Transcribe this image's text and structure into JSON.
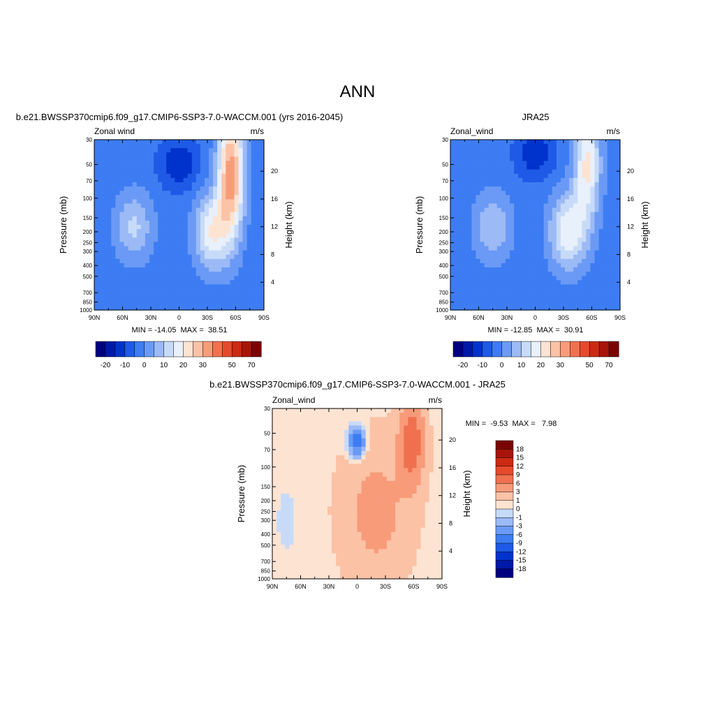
{
  "figure": {
    "title": "ANN",
    "colors": {
      "axis": "#000000",
      "background": "#ffffff"
    }
  },
  "chart_data": [
    {
      "type": "heatmap",
      "id": "panel-model",
      "title": "b.e21.BWSSP370cmip6.f09_g17.CMIP6-SSP3-7.0-WACCM.001 (yrs 2016-2045)",
      "left_label": "Zonal wind",
      "right_label": "m/s",
      "xlabel": "",
      "ylabel": "Pressure (mb)",
      "ylabel_right": "Height (km)",
      "x_ticks": [
        "90N",
        "60N",
        "30N",
        "0",
        "30S",
        "60S",
        "90S"
      ],
      "x_values": [
        90,
        60,
        30,
        0,
        -30,
        -60,
        -90
      ],
      "y_ticks": [
        "30",
        "50",
        "70",
        "100",
        "150",
        "200",
        "250",
        "300",
        "400",
        "500",
        "700",
        "850",
        "1000"
      ],
      "y_values": [
        30,
        50,
        70,
        100,
        150,
        200,
        250,
        300,
        400,
        500,
        700,
        850,
        1000
      ],
      "y_scale": "log",
      "height_ticks": [
        "4",
        "8",
        "12",
        "16",
        "20"
      ],
      "height_values": [
        4,
        8,
        12,
        16,
        20
      ],
      "stats": "MIN = -14.05  MAX =  38.51",
      "min": -14.05,
      "max": 38.51,
      "levels": [
        -25,
        -20,
        -15,
        -10,
        -5,
        0,
        5,
        10,
        15,
        20,
        25,
        30,
        35,
        40,
        50,
        60,
        70
      ],
      "colorbar_labels": [
        "-20",
        "-10",
        "0",
        "10",
        "20",
        "30",
        "50",
        "70"
      ],
      "colorbar_label_values": [
        -20,
        -10,
        0,
        10,
        20,
        30,
        50,
        70
      ],
      "features": [
        {
          "lat": 0,
          "p": 50,
          "value": -12,
          "sx": 14,
          "sp": 0.35
        },
        {
          "lat": 48,
          "p": 180,
          "value": 14,
          "sx": 14,
          "sp": 0.5
        },
        {
          "lat": -55,
          "p": 60,
          "value": 36,
          "sx": 10,
          "sp": 0.9
        },
        {
          "lat": -35,
          "p": 200,
          "value": 22,
          "sx": 13,
          "sp": 0.55
        }
      ],
      "background_value": -3
    },
    {
      "type": "heatmap",
      "id": "panel-obs",
      "title": "JRA25",
      "left_label": "Zonal_wind",
      "right_label": "m/s",
      "xlabel": "",
      "ylabel": "Pressure (mb)",
      "ylabel_right": "Height (km)",
      "x_ticks": [
        "90N",
        "60N",
        "30N",
        "0",
        "30S",
        "60S",
        "90S"
      ],
      "x_values": [
        90,
        60,
        30,
        0,
        -30,
        -60,
        -90
      ],
      "y_ticks": [
        "30",
        "50",
        "70",
        "100",
        "150",
        "200",
        "250",
        "300",
        "400",
        "500",
        "700",
        "850",
        "1000"
      ],
      "y_values": [
        30,
        50,
        70,
        100,
        150,
        200,
        250,
        300,
        400,
        500,
        700,
        850,
        1000
      ],
      "y_scale": "log",
      "height_ticks": [
        "4",
        "8",
        "12",
        "16",
        "20"
      ],
      "height_values": [
        4,
        8,
        12,
        16,
        20
      ],
      "stats": "MIN = -12.85  MAX =  30.91",
      "min": -12.85,
      "max": 30.91,
      "levels": [
        -25,
        -20,
        -15,
        -10,
        -5,
        0,
        5,
        10,
        15,
        20,
        25,
        30,
        35,
        40,
        50,
        60,
        70
      ],
      "colorbar_labels": [
        "-20",
        "-10",
        "0",
        "10",
        "20",
        "30",
        "50",
        "70"
      ],
      "colorbar_label_values": [
        -20,
        -10,
        0,
        10,
        20,
        30,
        50,
        70
      ],
      "features": [
        {
          "lat": 0,
          "p": 40,
          "value": -11,
          "sx": 14,
          "sp": 0.35
        },
        {
          "lat": 45,
          "p": 180,
          "value": 13,
          "sx": 14,
          "sp": 0.5
        },
        {
          "lat": -55,
          "p": 50,
          "value": 24,
          "sx": 10,
          "sp": 0.8
        },
        {
          "lat": -35,
          "p": 200,
          "value": 22,
          "sx": 14,
          "sp": 0.55
        }
      ],
      "background_value": -3
    },
    {
      "type": "heatmap",
      "id": "panel-diff",
      "title": "b.e21.BWSSP370cmip6.f09_g17.CMIP6-SSP3-7.0-WACCM.001 - JRA25",
      "left_label": "Zonal_wind",
      "right_label": "m/s",
      "xlabel": "",
      "ylabel": "Pressure (mb)",
      "ylabel_right": "Height (km)",
      "x_ticks": [
        "90N",
        "60N",
        "30N",
        "0",
        "30S",
        "60S",
        "90S"
      ],
      "x_values": [
        90,
        60,
        30,
        0,
        -30,
        -60,
        -90
      ],
      "y_ticks": [
        "30",
        "50",
        "70",
        "100",
        "150",
        "200",
        "250",
        "300",
        "400",
        "500",
        "700",
        "850",
        "1000"
      ],
      "y_values": [
        30,
        50,
        70,
        100,
        150,
        200,
        250,
        300,
        400,
        500,
        700,
        850,
        1000
      ],
      "y_scale": "log",
      "height_ticks": [
        "4",
        "8",
        "12",
        "16",
        "20"
      ],
      "height_values": [
        4,
        8,
        12,
        16,
        20
      ],
      "stats": "MIN =  -9.53  MAX =   7.98",
      "min": -9.53,
      "max": 7.98,
      "levels": [
        -21,
        -18,
        -15,
        -12,
        -9,
        -6,
        -3,
        -1,
        0,
        1,
        3,
        6,
        9,
        12,
        15,
        18,
        21
      ],
      "colorbar_labels": [
        "18",
        "15",
        "12",
        "9",
        "6",
        "3",
        "1",
        "0",
        "-1",
        "-3",
        "-6",
        "-9",
        "-12",
        "-15",
        "-18"
      ],
      "colorbar_label_values": [
        18,
        15,
        12,
        9,
        6,
        3,
        1,
        0,
        -1,
        -3,
        -6,
        -9,
        -12,
        -15,
        -18
      ],
      "features": [
        {
          "lat": 0,
          "p": 60,
          "value": -9.5,
          "sx": 6,
          "sp": 0.22
        },
        {
          "lat": -58,
          "p": 60,
          "value": 8,
          "sx": 9,
          "sp": 0.6
        },
        {
          "lat": -20,
          "p": 250,
          "value": 3.5,
          "sx": 25,
          "sp": 1.0
        },
        {
          "lat": 75,
          "p": 300,
          "value": -1.5,
          "sx": 6,
          "sp": 0.4
        }
      ],
      "background_value": 0.5
    }
  ],
  "colormaps": {
    "full": [
      "#000080",
      "#0019a8",
      "#0033cc",
      "#1e5ae6",
      "#3d7cf2",
      "#6a9af5",
      "#9bbaf6",
      "#c7dbf9",
      "#e8f0fb",
      "#fde3d2",
      "#fbc2a6",
      "#f89b79",
      "#f0714f",
      "#e64a2c",
      "#cc2a12",
      "#a8140a",
      "#7a0505"
    ],
    "diff": [
      "#000080",
      "#0019a8",
      "#0033cc",
      "#1e5ae6",
      "#3d7cf2",
      "#6a9af5",
      "#9bbaf6",
      "#c7dbf9",
      "#fde3d2",
      "#fbc2a6",
      "#f89b79",
      "#f0714f",
      "#e64a2c",
      "#cc2a12",
      "#a8140a",
      "#7a0505"
    ]
  }
}
